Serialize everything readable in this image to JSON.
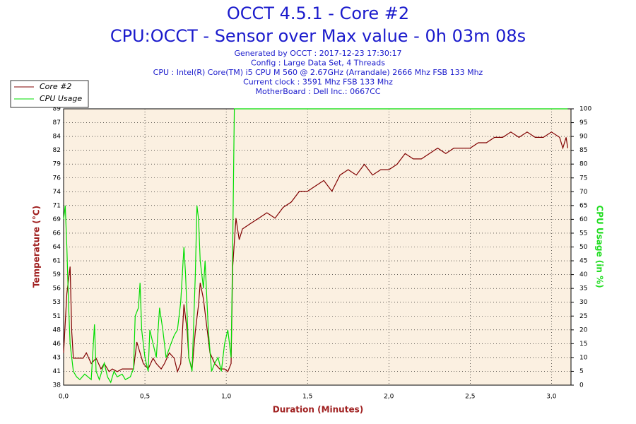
{
  "chart_data": {
    "type": "line",
    "title": "OCCT 4.5.1 - Core #2",
    "subtitle": "CPU:OCCT - Sensor over Max value - 0h 03m 08s",
    "info": [
      "Generated by OCCT : 2017-12-23 17:30:17",
      "Config : Large Data Set, 4 Threads",
      "CPU : Intel(R) Core(TM) i5 CPU M 560 @ 2.67GHz (Arrandale) 2666 Mhz FSB 133 Mhz",
      "Current clock : 3591 Mhz FSB 133 Mhz",
      "MotherBoard : Dell Inc.: 0667CC"
    ],
    "xlabel": "Duration (Minutes)",
    "ylabel": "Temperature (°C)",
    "y2label": "CPU Usage (in %)",
    "xlim": [
      0,
      3.12
    ],
    "xticks": [
      {
        "value": 0,
        "label": "0,0"
      },
      {
        "value": 0.5,
        "label": "0,5"
      },
      {
        "value": 1,
        "label": "1,0"
      },
      {
        "value": 1.5,
        "label": "1,5"
      },
      {
        "value": 2,
        "label": "2,0"
      },
      {
        "value": 2.5,
        "label": "2,5"
      },
      {
        "value": 3,
        "label": "3,0"
      }
    ],
    "ylim": [
      38,
      89.3
    ],
    "yticks": [
      38,
      {
        "value": 40.565,
        "label": "41"
      },
      {
        "value": 43.13,
        "label": "43"
      },
      {
        "value": 45.695,
        "label": "46"
      },
      {
        "value": 48.26,
        "label": "48"
      },
      {
        "value": 50.825,
        "label": "51"
      },
      {
        "value": 53.39,
        "label": "53"
      },
      {
        "value": 55.955,
        "label": "56"
      },
      {
        "value": 58.52,
        "label": "59"
      },
      {
        "value": 61.085,
        "label": "61"
      },
      {
        "value": 63.65,
        "label": "64"
      },
      {
        "value": 66.215,
        "label": "66"
      },
      {
        "value": 68.78,
        "label": "69"
      },
      {
        "value": 71.345,
        "label": "71"
      },
      {
        "value": 73.91,
        "label": "74"
      },
      {
        "value": 76.475,
        "label": "76"
      },
      {
        "value": 79.04,
        "label": "79"
      },
      {
        "value": 81.605,
        "label": "82"
      },
      {
        "value": 84.17,
        "label": "84"
      },
      {
        "value": 86.735,
        "label": "87"
      },
      {
        "value": 89.3,
        "label": "89"
      }
    ],
    "y2lim": [
      0,
      100
    ],
    "y2ticks": [
      0,
      5,
      10,
      15,
      20,
      25,
      30,
      35,
      40,
      45,
      50,
      55,
      60,
      65,
      70,
      75,
      80,
      85,
      90,
      95,
      100
    ],
    "grid": true,
    "legend": "top-left",
    "series": [
      {
        "name": "Core #2",
        "color": "#800000",
        "x": [
          0.0,
          0.02,
          0.04,
          0.05,
          0.06,
          0.1,
          0.12,
          0.14,
          0.17,
          0.2,
          0.23,
          0.25,
          0.28,
          0.3,
          0.33,
          0.36,
          0.4,
          0.43,
          0.45,
          0.47,
          0.49,
          0.52,
          0.55,
          0.57,
          0.6,
          0.62,
          0.65,
          0.68,
          0.7,
          0.72,
          0.74,
          0.76,
          0.77,
          0.79,
          0.81,
          0.83,
          0.84,
          0.86,
          0.88,
          0.9,
          0.93,
          0.96,
          0.99,
          1.01,
          1.03,
          1.04,
          1.06,
          1.08,
          1.1,
          1.15,
          1.2,
          1.25,
          1.3,
          1.35,
          1.4,
          1.45,
          1.5,
          1.55,
          1.6,
          1.65,
          1.7,
          1.75,
          1.8,
          1.85,
          1.9,
          1.95,
          2.0,
          2.05,
          2.1,
          2.15,
          2.2,
          2.25,
          2.3,
          2.35,
          2.4,
          2.45,
          2.5,
          2.55,
          2.6,
          2.65,
          2.7,
          2.75,
          2.8,
          2.85,
          2.9,
          2.95,
          3.0,
          3.05,
          3.07,
          3.09,
          3.1
        ],
        "values": [
          44,
          55,
          60,
          48,
          43,
          43,
          43,
          44,
          42,
          43,
          41,
          42,
          40.5,
          41,
          40.5,
          41,
          41,
          41,
          46,
          44,
          42,
          41,
          43,
          42,
          41,
          42,
          44,
          43,
          40.5,
          42,
          53,
          48,
          43,
          41,
          48,
          53,
          57,
          54,
          49,
          44,
          42,
          41,
          41,
          40.5,
          42,
          60,
          69,
          65,
          67,
          68,
          69,
          70,
          69,
          71,
          72,
          74,
          74,
          75,
          76,
          74,
          77,
          78,
          77,
          79,
          77,
          78,
          78,
          79,
          81,
          80,
          80,
          81,
          82,
          81,
          82,
          82,
          82,
          83,
          83,
          84,
          84,
          85,
          84,
          85,
          84,
          84,
          85,
          84,
          82,
          84,
          82
        ]
      },
      {
        "name": "CPU Usage",
        "color": "#00dd00",
        "axis": "y2",
        "x": [
          0.0,
          0.01,
          0.02,
          0.03,
          0.04,
          0.06,
          0.08,
          0.1,
          0.13,
          0.15,
          0.17,
          0.19,
          0.2,
          0.22,
          0.25,
          0.27,
          0.29,
          0.31,
          0.33,
          0.36,
          0.38,
          0.41,
          0.43,
          0.44,
          0.46,
          0.47,
          0.48,
          0.5,
          0.52,
          0.53,
          0.55,
          0.57,
          0.59,
          0.61,
          0.63,
          0.66,
          0.68,
          0.7,
          0.72,
          0.74,
          0.75,
          0.77,
          0.79,
          0.81,
          0.82,
          0.83,
          0.84,
          0.86,
          0.87,
          0.89,
          0.91,
          0.93,
          0.95,
          0.97,
          0.99,
          1.01,
          1.03,
          1.04,
          1.05,
          3.1
        ],
        "values": [
          60,
          65,
          50,
          30,
          15,
          5,
          3,
          2,
          4,
          3,
          2,
          22,
          5,
          2,
          8,
          3,
          1,
          5,
          3,
          4,
          2,
          3,
          6,
          25,
          28,
          37,
          20,
          10,
          5,
          20,
          15,
          10,
          28,
          20,
          10,
          15,
          18,
          20,
          30,
          50,
          40,
          10,
          5,
          40,
          65,
          60,
          45,
          35,
          45,
          20,
          5,
          8,
          10,
          5,
          15,
          20,
          10,
          50,
          100,
          100
        ]
      }
    ]
  }
}
